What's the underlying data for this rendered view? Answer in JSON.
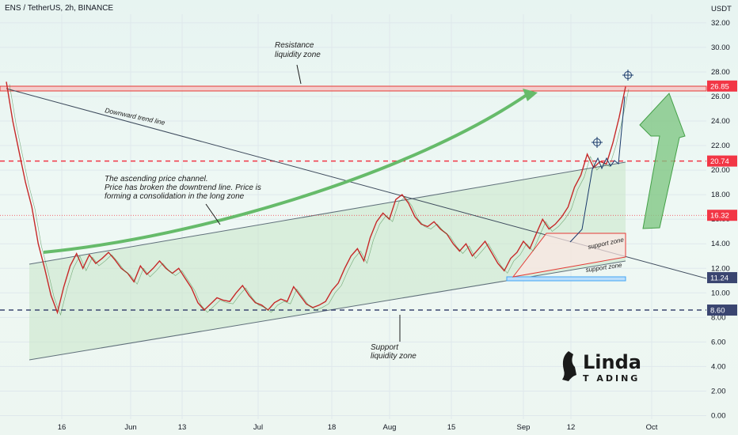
{
  "header": {
    "title": "ENS / TetherUS, 2h, BINANCE"
  },
  "logo": {
    "line1": "Linda",
    "line2": "T  ADING"
  },
  "annotations": {
    "resistance_l1": "Resistance",
    "resistance_l2": "liquidity zone",
    "downtrend": "Downward trend line",
    "channel_l1": "The ascending price channel.",
    "channel_l2": "Price has broken the downtrend line. Price is",
    "channel_l3": "forming a consolidation in the long zone",
    "support_l1": "Support",
    "support_l2": "liquidity zone",
    "support_zone_1": "support zone",
    "support_zone_2": "support zone"
  },
  "colors": {
    "red_level": "#e53935",
    "badge_red": "#f23645",
    "badge_blue": "#2962ff",
    "badge_navy": "#3a4570",
    "green_arrow": "#66bb6a",
    "channel_fill": "#c8e6c9",
    "grid": "#dfe8ec"
  },
  "chart_data": {
    "type": "line",
    "symbol": "ENS / TetherUS, 2h, BINANCE",
    "y_unit": "USDT",
    "ylim": [
      0,
      34
    ],
    "y_ticks": [
      "32.00",
      "30.00",
      "28.00",
      "26.00",
      "24.00",
      "22.00",
      "20.00",
      "18.00",
      "16.00",
      "14.00",
      "12.00",
      "10.00",
      "8.00",
      "6.00",
      "4.00",
      "2.00",
      "0.00"
    ],
    "x_ticks": [
      "16",
      "Jun",
      "13",
      "Jul",
      "18",
      "Aug",
      "15",
      "Sep",
      "12",
      "Oct"
    ],
    "levels": [
      {
        "label": "26.85",
        "value": 26.85,
        "color": "#f23645"
      },
      {
        "label": "20.74",
        "value": 20.74,
        "color": "#f23645"
      },
      {
        "label": "16.32",
        "value": 16.32,
        "color": "#f23645"
      },
      {
        "label": "11.24",
        "value": 11.24,
        "color": "#3a4570"
      },
      {
        "label": "8.60",
        "value": 8.6,
        "color": "#3a4570"
      }
    ],
    "series": [
      {
        "values": [
          27.2,
          24.0,
          21.5,
          19.0,
          17.0,
          14.0,
          12.0,
          9.8,
          8.4,
          10.5,
          12.2,
          13.2,
          12.0,
          13.1,
          12.4,
          12.8,
          13.3,
          12.7,
          12.0,
          11.6,
          10.9,
          12.2,
          11.5,
          12.0,
          12.6,
          12.0,
          11.6,
          12.0,
          11.2,
          10.4,
          9.2,
          8.6,
          9.1,
          9.6,
          9.4,
          9.3,
          10.0,
          10.6,
          9.8,
          9.2,
          9.0,
          8.6,
          9.2,
          9.5,
          9.3,
          10.5,
          9.8,
          9.1,
          8.8,
          9.0,
          9.3,
          10.2,
          10.8,
          12.0,
          13.0,
          13.6,
          12.6,
          14.5,
          15.8,
          16.5,
          16.0,
          17.6,
          18.0,
          17.3,
          16.2,
          15.6,
          15.4,
          15.8,
          15.2,
          14.8,
          14.0,
          13.4,
          14.0,
          13.0,
          13.6,
          14.2,
          13.3,
          12.4,
          11.8,
          12.8,
          13.3,
          14.2,
          13.6,
          14.8,
          16.0,
          15.2,
          15.6,
          16.2,
          17.0,
          18.6,
          19.6,
          21.3,
          20.2,
          20.7,
          20.5,
          22.2,
          24.3,
          26.8
        ]
      }
    ]
  }
}
